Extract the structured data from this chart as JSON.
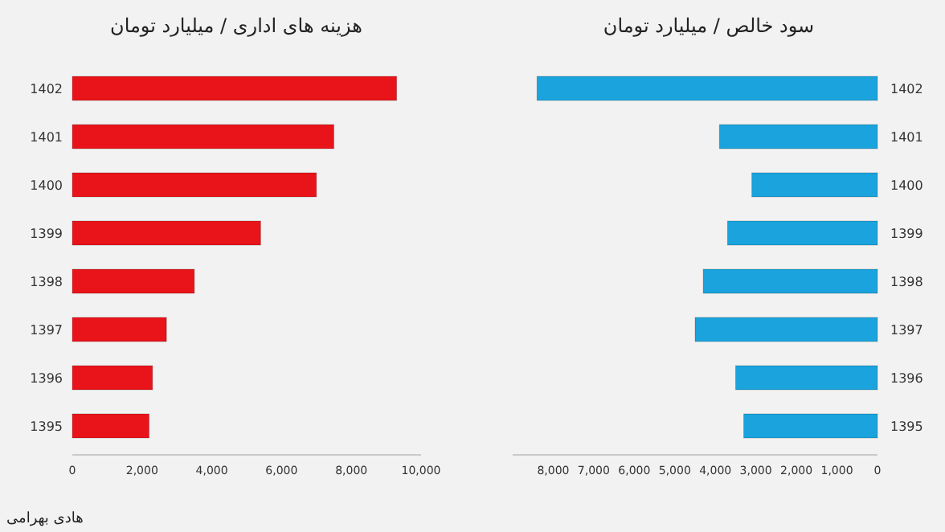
{
  "chart_data": [
    {
      "type": "bar",
      "orientation": "horizontal",
      "title": "هزینه های اداری / میلیارد تومان",
      "categories": [
        "1402",
        "1401",
        "1400",
        "1399",
        "1398",
        "1397",
        "1396",
        "1395"
      ],
      "values": [
        9300,
        7500,
        7000,
        5400,
        3500,
        2700,
        2300,
        2200
      ],
      "color": "#e8141a",
      "xlim": [
        0,
        10000
      ],
      "xticks": [
        0,
        {
          "value": 2000,
          "label": "2,000"
        },
        {
          "value": 4000,
          "label": "4,000"
        },
        {
          "value": 6000,
          "label": "6,000"
        },
        {
          "value": 8000,
          "label": "8,000"
        },
        {
          "value": 10000,
          "label": "10,000"
        }
      ],
      "annotations": [
        "هادی بهرامی"
      ]
    },
    {
      "type": "bar",
      "orientation": "horizontal",
      "title": "سود خالص / میلیارد تومان",
      "categories": [
        "1402",
        "1401",
        "1400",
        "1399",
        "1398",
        "1397",
        "1396",
        "1395"
      ],
      "values": [
        8400,
        3900,
        3100,
        3700,
        4300,
        4500,
        3500,
        3300
      ],
      "color": "#1aa3dc",
      "xlim": [
        9000,
        0
      ],
      "xticks": [
        {
          "value": 8000,
          "label": "8,000"
        },
        {
          "value": 7000,
          "label": "7,000"
        },
        {
          "value": 6000,
          "label": "6,000"
        },
        {
          "value": 5000,
          "label": "5,000"
        },
        {
          "value": 4000,
          "label": "4,000"
        },
        {
          "value": 3000,
          "label": "3,000"
        },
        {
          "value": 2000,
          "label": "2,000"
        },
        {
          "value": 1000,
          "label": "1,000"
        },
        0
      ]
    }
  ]
}
